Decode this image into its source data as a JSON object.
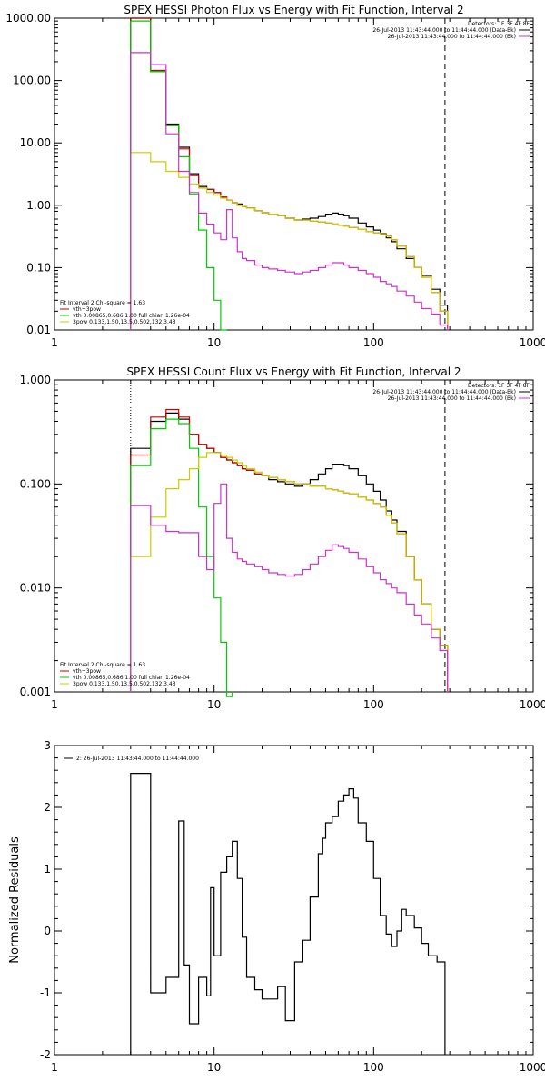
{
  "chart_data": [
    {
      "type": "line",
      "title": "SPEX HESSI Photon Flux vs Energy with Fit Function, Interval 2",
      "xlabel": "",
      "ylabel": "",
      "xscale": "log",
      "yscale": "log",
      "xlim": [
        1,
        1000
      ],
      "ylim": [
        0.01,
        1000
      ],
      "x_ticks": [
        "1",
        "10",
        "100",
        "1000"
      ],
      "y_ticks": [
        "0.01",
        "0.10",
        "1.00",
        "10.00",
        "100.00",
        "1000.00"
      ],
      "x_edges": [
        3,
        4,
        5,
        6,
        7,
        8,
        9,
        10,
        11,
        12,
        13,
        14,
        15,
        16,
        18,
        20,
        22,
        25,
        28,
        32,
        36,
        40,
        45,
        50,
        55,
        60,
        65,
        70,
        80,
        90,
        100,
        110,
        120,
        130,
        140,
        160,
        180,
        200,
        230,
        260,
        290
      ],
      "vline_dashed_x": 280,
      "legend_top_right": {
        "header": "Detectors: 1F 3F 4F 8F",
        "entries": [
          {
            "label": "26-Jul-2013 11:43:44.000 to 11:44:44.000 (Data-Bk)",
            "color": "#000000"
          },
          {
            "label": "26-Jul-2013 11:43:44.000 to 11:44:44.000 (Bk)",
            "color": "#cc33cc"
          }
        ]
      },
      "legend_bottom_left": {
        "header": "Fit Interval 2   Chi-square = 1.63",
        "entries": [
          {
            "label": "vth+3pow",
            "color": "#cc0000"
          },
          {
            "label": "vth 0.00865,0.686,1.00  full chian 1.26e-04",
            "color": "#00cc00"
          },
          {
            "label": "3pow 0.133,1.50,13.5,0.502,132,3.43",
            "color": "#cccc00"
          }
        ]
      },
      "series": [
        {
          "color": "#000000",
          "values": [
            1000,
            140,
            20,
            8.5,
            3.2,
            2.0,
            1.8,
            1.6,
            1.35,
            1.2,
            1.1,
            1.05,
            0.95,
            0.9,
            0.82,
            0.76,
            0.72,
            0.68,
            0.62,
            0.58,
            0.6,
            0.62,
            0.66,
            0.72,
            0.75,
            0.72,
            0.68,
            0.62,
            0.52,
            0.45,
            0.4,
            0.35,
            0.3,
            0.26,
            0.2,
            0.14,
            0.1,
            0.075,
            0.045,
            0.025
          ]
        },
        {
          "color": "#cc0000",
          "values": [
            1000,
            145,
            19,
            8,
            3.0,
            1.9,
            1.8,
            1.6,
            1.35,
            1.2,
            1.1,
            1.0,
            0.95,
            0.9,
            0.82,
            0.76,
            0.72,
            0.68,
            0.62,
            0.58,
            0.58,
            0.56,
            0.54,
            0.52,
            0.5,
            0.48,
            0.46,
            0.44,
            0.41,
            0.38,
            0.36,
            0.34,
            0.32,
            0.28,
            0.22,
            0.15,
            0.1,
            0.07,
            0.04,
            0.02
          ]
        },
        {
          "color": "#00cc00",
          "values": [
            900,
            140,
            19,
            6,
            1.5,
            0.4,
            0.1,
            0.03,
            0.01
          ]
        },
        {
          "color": "#cccc00",
          "values": [
            7.0,
            5.0,
            3.5,
            2.8,
            2.2,
            1.9,
            1.6,
            1.45,
            1.3,
            1.2,
            1.1,
            1.0,
            0.95,
            0.9,
            0.82,
            0.76,
            0.72,
            0.68,
            0.62,
            0.58,
            0.58,
            0.56,
            0.54,
            0.52,
            0.5,
            0.48,
            0.46,
            0.44,
            0.41,
            0.38,
            0.36,
            0.34,
            0.32,
            0.28,
            0.22,
            0.15,
            0.1,
            0.07,
            0.04,
            0.02
          ]
        },
        {
          "color": "#cc33cc",
          "values": [
            280,
            180,
            14,
            3.5,
            1.6,
            0.75,
            0.5,
            0.36,
            0.28,
            0.85,
            0.3,
            0.18,
            0.14,
            0.13,
            0.11,
            0.1,
            0.095,
            0.09,
            0.085,
            0.08,
            0.085,
            0.09,
            0.1,
            0.11,
            0.12,
            0.12,
            0.11,
            0.1,
            0.09,
            0.08,
            0.07,
            0.06,
            0.055,
            0.05,
            0.042,
            0.035,
            0.028,
            0.022,
            0.018,
            0.012
          ]
        }
      ]
    },
    {
      "type": "line",
      "title": "SPEX HESSI Count Flux vs Energy with Fit Function, Interval 2",
      "xlabel": "",
      "ylabel": "",
      "xscale": "log",
      "yscale": "log",
      "xlim": [
        1,
        1000
      ],
      "ylim": [
        0.001,
        1
      ],
      "x_ticks": [
        "1",
        "10",
        "100",
        "1000"
      ],
      "y_ticks": [
        "0.001",
        "0.010",
        "0.100",
        "1.000"
      ],
      "x_edges": [
        3,
        4,
        5,
        6,
        7,
        8,
        9,
        10,
        11,
        12,
        13,
        14,
        15,
        16,
        18,
        20,
        22,
        25,
        28,
        32,
        36,
        40,
        45,
        50,
        55,
        60,
        65,
        70,
        80,
        90,
        100,
        110,
        120,
        130,
        140,
        160,
        180,
        200,
        230,
        260,
        290
      ],
      "vline_dashed_x": 280,
      "legend_top_right": {
        "header": "Detectors: 1F 3F 4F 8F",
        "entries": [
          {
            "label": "26-Jul-2013 11:43:44.000 to 11:44:44.000 (Data-Bk)",
            "color": "#000000"
          },
          {
            "label": "26-Jul-2013 11:43:44.000 to 11:44:44.000 (Bk)",
            "color": "#cc33cc"
          }
        ]
      },
      "legend_bottom_left": {
        "header": "Fit Interval 2   Chi-square = 1.63",
        "entries": [
          {
            "label": "vth+3pow",
            "color": "#cc0000"
          },
          {
            "label": "vth 0.00865,0.686,1.00  full chian 1.26e-04",
            "color": "#00cc00"
          },
          {
            "label": "3pow 0.133,1.50,13.5,0.502,132,3.43",
            "color": "#cccc00"
          }
        ]
      },
      "series": [
        {
          "color": "#000000",
          "values": [
            0.22,
            0.4,
            0.48,
            0.42,
            0.3,
            0.24,
            0.22,
            0.2,
            0.18,
            0.17,
            0.16,
            0.15,
            0.14,
            0.135,
            0.125,
            0.12,
            0.11,
            0.105,
            0.1,
            0.095,
            0.1,
            0.11,
            0.125,
            0.14,
            0.155,
            0.155,
            0.15,
            0.14,
            0.12,
            0.1,
            0.085,
            0.07,
            0.055,
            0.045,
            0.035,
            0.02,
            0.012,
            0.007,
            0.004,
            0.0028
          ]
        },
        {
          "color": "#cc0000",
          "values": [
            0.19,
            0.44,
            0.52,
            0.44,
            0.3,
            0.24,
            0.22,
            0.2,
            0.18,
            0.17,
            0.16,
            0.15,
            0.14,
            0.135,
            0.125,
            0.12,
            0.115,
            0.11,
            0.105,
            0.1,
            0.1,
            0.095,
            0.095,
            0.09,
            0.088,
            0.085,
            0.082,
            0.08,
            0.075,
            0.07,
            0.065,
            0.06,
            0.05,
            0.042,
            0.033,
            0.02,
            0.012,
            0.007,
            0.004,
            0.0028
          ]
        },
        {
          "color": "#00cc00",
          "values": [
            0.15,
            0.34,
            0.42,
            0.38,
            0.22,
            0.06,
            0.02,
            0.008,
            0.003,
            0.0009
          ]
        },
        {
          "color": "#cccc00",
          "values": [
            0.02,
            0.048,
            0.09,
            0.11,
            0.14,
            0.18,
            0.2,
            0.2,
            0.19,
            0.18,
            0.17,
            0.16,
            0.15,
            0.14,
            0.13,
            0.12,
            0.115,
            0.11,
            0.105,
            0.1,
            0.1,
            0.095,
            0.095,
            0.09,
            0.088,
            0.085,
            0.082,
            0.08,
            0.075,
            0.07,
            0.065,
            0.06,
            0.05,
            0.042,
            0.033,
            0.02,
            0.012,
            0.007,
            0.004,
            0.0028
          ]
        },
        {
          "color": "#cc33cc",
          "values": [
            0.062,
            0.04,
            0.035,
            0.034,
            0.034,
            0.02,
            0.015,
            0.065,
            0.1,
            0.03,
            0.022,
            0.019,
            0.018,
            0.017,
            0.016,
            0.015,
            0.014,
            0.0135,
            0.013,
            0.0135,
            0.015,
            0.017,
            0.02,
            0.023,
            0.026,
            0.025,
            0.024,
            0.022,
            0.019,
            0.016,
            0.014,
            0.012,
            0.011,
            0.01,
            0.009,
            0.007,
            0.0055,
            0.0045,
            0.0033,
            0.0025
          ]
        }
      ]
    },
    {
      "type": "line",
      "title": "",
      "xlabel": "",
      "ylabel": "Normalized Residuals",
      "xscale": "log",
      "yscale": "linear",
      "xlim": [
        1,
        1000
      ],
      "ylim": [
        -2,
        3
      ],
      "x_ticks": [
        "1",
        "10",
        "100",
        "1000"
      ],
      "y_ticks": [
        "-2",
        "-1",
        "0",
        "1",
        "2",
        "3"
      ],
      "x_edges": [
        3,
        3.4,
        4,
        5,
        6,
        6.5,
        7,
        8,
        9,
        9.5,
        10,
        11,
        12,
        13,
        14,
        15,
        16,
        18,
        20,
        22,
        25,
        28,
        32,
        36,
        40,
        45,
        48,
        50,
        55,
        60,
        65,
        70,
        75,
        80,
        90,
        100,
        110,
        120,
        130,
        140,
        150,
        160,
        180,
        200,
        220,
        250,
        280
      ],
      "legend_top_left": {
        "entries": [
          {
            "label": "2: 26-Jul-2013 11:43:44.000 to 11:44:44.000",
            "color": "#000000"
          }
        ]
      },
      "series": [
        {
          "color": "#000000",
          "values": [
            2.55,
            2.55,
            -1.0,
            -0.75,
            1.78,
            -0.55,
            -1.5,
            -0.75,
            -1.05,
            0.7,
            -0.4,
            0.95,
            1.2,
            1.45,
            0.85,
            -0.1,
            -0.75,
            -0.95,
            -1.1,
            -1.1,
            -0.9,
            -1.45,
            -0.5,
            -0.15,
            0.55,
            1.25,
            1.5,
            1.75,
            1.85,
            2.1,
            2.2,
            2.3,
            2.15,
            1.75,
            1.45,
            0.85,
            0.25,
            -0.05,
            -0.25,
            0.0,
            0.35,
            0.25,
            0.05,
            -0.2,
            -0.4,
            -0.5
          ]
        }
      ]
    }
  ]
}
